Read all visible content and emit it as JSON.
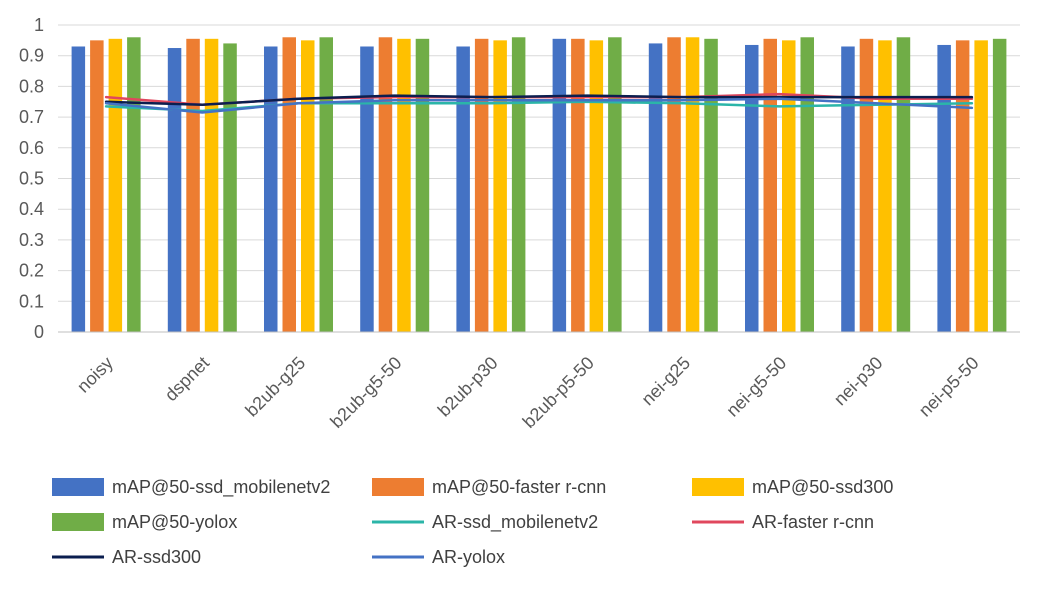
{
  "chart_data": {
    "type": "bar",
    "title": "",
    "xlabel": "",
    "ylabel": "",
    "ylim": [
      0,
      1
    ],
    "yticks": [
      0,
      0.1,
      0.2,
      0.3,
      0.4,
      0.5,
      0.6,
      0.7,
      0.8,
      0.9,
      1
    ],
    "ytick_labels": [
      "0",
      "0.1",
      "0.2",
      "0.3",
      "0.4",
      "0.5",
      "0.6",
      "0.7",
      "0.8",
      "0.9",
      "1"
    ],
    "grid": true,
    "legend_position": "bottom",
    "categories": [
      "noisy",
      "dspnet",
      "b2ub-g25",
      "b2ub-g5-50",
      "b2ub-p30",
      "b2ub-p5-50",
      "nei-g25",
      "nei-g5-50",
      "nei-p30",
      "nei-p5-50"
    ],
    "series": [
      {
        "name": "mAP@50-ssd_mobilenetv2",
        "kind": "bar",
        "color": "#4472C4",
        "values": [
          0.93,
          0.925,
          0.93,
          0.93,
          0.93,
          0.955,
          0.94,
          0.935,
          0.93,
          0.935
        ]
      },
      {
        "name": "mAP@50-faster r-cnn",
        "kind": "bar",
        "color": "#ED7D31",
        "values": [
          0.95,
          0.955,
          0.96,
          0.96,
          0.955,
          0.955,
          0.96,
          0.955,
          0.955,
          0.95
        ]
      },
      {
        "name": "mAP@50-ssd300",
        "kind": "bar",
        "color": "#FFC000",
        "values": [
          0.955,
          0.955,
          0.95,
          0.955,
          0.95,
          0.95,
          0.96,
          0.95,
          0.95,
          0.95
        ]
      },
      {
        "name": "mAP@50-yolox",
        "kind": "bar",
        "color": "#70AD47",
        "values": [
          0.96,
          0.94,
          0.96,
          0.955,
          0.96,
          0.96,
          0.955,
          0.96,
          0.96,
          0.955
        ]
      },
      {
        "name": "AR-ssd_mobilenetv2",
        "kind": "line",
        "color": "#2BB5A8",
        "values": [
          0.735,
          0.72,
          0.745,
          0.745,
          0.745,
          0.75,
          0.745,
          0.735,
          0.74,
          0.745
        ]
      },
      {
        "name": "AR-faster r-cnn",
        "kind": "line",
        "color": "#E0475D",
        "values": [
          0.765,
          0.74,
          0.76,
          0.765,
          0.765,
          0.765,
          0.765,
          0.775,
          0.76,
          0.76
        ]
      },
      {
        "name": "AR-ssd300",
        "kind": "line",
        "color": "#0B1E4F",
        "values": [
          0.75,
          0.74,
          0.76,
          0.77,
          0.765,
          0.77,
          0.765,
          0.765,
          0.765,
          0.765
        ]
      },
      {
        "name": "AR-yolox",
        "kind": "line",
        "color": "#4472C4",
        "values": [
          0.745,
          0.715,
          0.745,
          0.755,
          0.755,
          0.755,
          0.755,
          0.76,
          0.745,
          0.73
        ]
      }
    ]
  }
}
